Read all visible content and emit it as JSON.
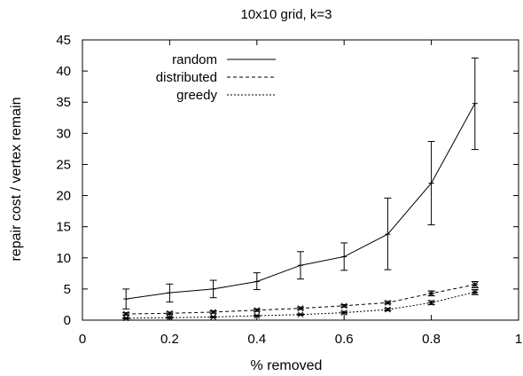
{
  "chart_data": {
    "type": "line",
    "title": "10x10 grid, k=3",
    "xlabel": "% removed",
    "ylabel": "repair cost / vertex remain",
    "xlim": [
      0,
      1
    ],
    "ylim": [
      0,
      45
    ],
    "xticks": [
      0,
      0.2,
      0.4,
      0.6,
      0.8,
      1
    ],
    "xtick_labels": [
      "0",
      "0.2",
      "0.4",
      "0.6",
      "0.8",
      "1"
    ],
    "yticks": [
      0,
      5,
      10,
      15,
      20,
      25,
      30,
      35,
      40,
      45
    ],
    "ytick_labels": [
      "0",
      "5",
      "10",
      "15",
      "20",
      "25",
      "30",
      "35",
      "40",
      "45"
    ],
    "grid": false,
    "legend_position": "top-left",
    "x": [
      0.1,
      0.2,
      0.3,
      0.4,
      0.5,
      0.6,
      0.7,
      0.8,
      0.9
    ],
    "series": [
      {
        "name": "random",
        "line_style": "solid",
        "values": [
          3.4,
          4.4,
          5.0,
          6.2,
          8.8,
          10.2,
          13.8,
          22.0,
          34.8
        ],
        "err_low": [
          1.8,
          2.9,
          3.6,
          4.9,
          6.6,
          8.0,
          8.1,
          15.3,
          27.4
        ],
        "err_high": [
          5.0,
          5.8,
          6.4,
          7.6,
          11.0,
          12.4,
          19.6,
          28.7,
          42.1
        ],
        "marker": "tick"
      },
      {
        "name": "distributed",
        "line_style": "dashed",
        "values": [
          1.0,
          1.1,
          1.3,
          1.6,
          1.9,
          2.3,
          2.8,
          4.3,
          5.7
        ],
        "err_low": [
          0.8,
          0.9,
          1.1,
          1.4,
          1.7,
          2.1,
          2.6,
          3.9,
          5.2
        ],
        "err_high": [
          1.2,
          1.3,
          1.5,
          1.8,
          2.1,
          2.5,
          3.0,
          4.7,
          6.2
        ],
        "marker": "star"
      },
      {
        "name": "greedy",
        "line_style": "dotted",
        "values": [
          0.3,
          0.4,
          0.5,
          0.7,
          0.9,
          1.2,
          1.7,
          2.8,
          4.5
        ],
        "err_low": [
          0.2,
          0.3,
          0.4,
          0.6,
          0.8,
          1.0,
          1.5,
          2.5,
          4.1
        ],
        "err_high": [
          0.4,
          0.5,
          0.6,
          0.8,
          1.0,
          1.4,
          1.9,
          3.1,
          4.9
        ],
        "marker": "star"
      }
    ]
  }
}
